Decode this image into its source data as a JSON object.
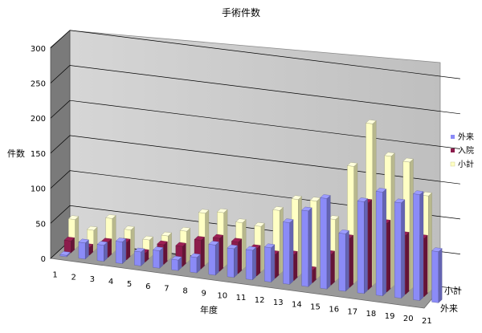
{
  "chart_data": {
    "type": "bar",
    "title": "手術件数",
    "xlabel": "年度",
    "ylabel": "件数",
    "ylim": [
      0,
      300
    ],
    "yticks": [
      0,
      50,
      100,
      150,
      200,
      250,
      300
    ],
    "categories": [
      "1",
      "2",
      "3",
      "4",
      "5",
      "6",
      "7",
      "8",
      "9",
      "10",
      "11",
      "12",
      "13",
      "14",
      "15",
      "16",
      "17",
      "18",
      "19",
      "20",
      "21"
    ],
    "series": [
      {
        "name": "外来",
        "color": "#8b8bf7",
        "values": [
          2,
          23,
          23,
          31,
          20,
          25,
          15,
          22,
          43,
          41,
          42,
          49,
          88,
          108,
          129,
          82,
          131,
          148,
          136,
          151,
          73
        ]
      },
      {
        "name": "入院",
        "color": "#8c1c4c",
        "values": [
          17,
          11,
          22,
          25,
          13,
          28,
          29,
          41,
          47,
          45,
          39,
          34,
          37,
          18,
          44,
          70,
          124,
          98,
          84,
          83,
          0
        ]
      },
      {
        "name": "小計",
        "color": "#ffffc4",
        "values": [
          42,
          30,
          50,
          37,
          26,
          35,
          45,
          74,
          78,
          67,
          65,
          91,
          110,
          111,
          88,
          167,
          231,
          188,
          183,
          138,
          0
        ]
      }
    ],
    "depth_labels": [
      "外来",
      "小計"
    ],
    "legend": [
      "外来",
      "入院",
      "小計"
    ],
    "legend_position": "right",
    "grid": true,
    "projection": "3d"
  }
}
